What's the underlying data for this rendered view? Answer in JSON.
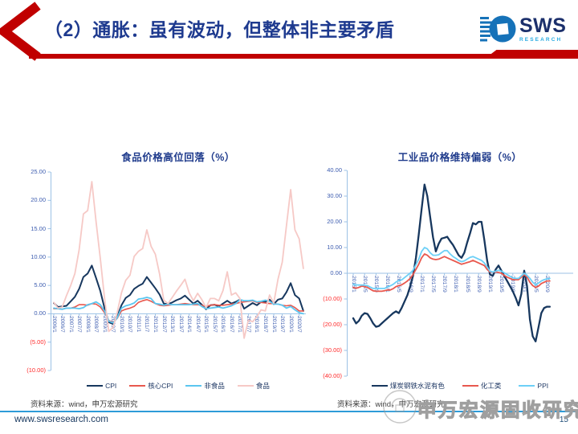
{
  "header": {
    "title": "（2）通胀：虽有波动，但整体非主要矛盾",
    "logo_text": "SWS",
    "logo_subtext": "RESEARCH"
  },
  "footer": {
    "source_left": "资料来源：wind，申万宏源研究",
    "source_right": "资料来源：wind，申万宏源研究",
    "watermark": "申万宏源固收研究",
    "website": "www.swsresearch.com",
    "page_number": "15"
  },
  "colors": {
    "accent_red": "#C00000",
    "title_navy": "#1E3A8F",
    "chart_title_navy": "#1F3B8C",
    "axis_line_blue": "#9CC2E5",
    "tick_label_blue": "#3E5EB0",
    "tick_label_negative_red": "#FF2B2B",
    "footer_line_blue": "#2E9BD8",
    "logo_blue": "#1672B8",
    "logo_cyan": "#29ABE2",
    "watermark_gray": "#9F9F9F"
  },
  "chart_data": [
    {
      "type": "line",
      "title": "食品价格高位回落（%）",
      "x_start": "2006/1",
      "x_end": "2020/10",
      "sample_interval_months": 3,
      "ylim": [
        -10,
        25
      ],
      "grid": false,
      "legend_position": "bottom",
      "y_ticks": [
        {
          "label": "25.00",
          "value": 25
        },
        {
          "label": "20.00",
          "value": 20
        },
        {
          "label": "15.00",
          "value": 15
        },
        {
          "label": "10.00",
          "value": 10
        },
        {
          "label": "5.00",
          "value": 5
        },
        {
          "label": "0.00",
          "value": 0
        },
        {
          "label": "(5.00)",
          "value": -5
        },
        {
          "label": "(10.00)",
          "value": -10
        }
      ],
      "x_tick_labels": [
        "2006/1",
        "2006/7",
        "2007/1",
        "2007/7",
        "2008/1",
        "2008/7",
        "2009/1",
        "2009/7",
        "2010/1",
        "2010/7",
        "2011/1",
        "2011/7",
        "2012/1",
        "2012/7",
        "2013/1",
        "2013/7",
        "2014/1",
        "2014/7",
        "2015/1",
        "2015/7",
        "2016/1",
        "2016/7",
        "2017/1",
        "2017/7",
        "2018/1",
        "2018/7",
        "2019/1",
        "2019/7",
        "2020/1",
        "2020/7"
      ],
      "series": [
        {
          "name": "CPI",
          "color": "#17375E",
          "line_width": 2.0,
          "values": [
            1.9,
            1.2,
            1.3,
            1.4,
            2.2,
            3.0,
            4.4,
            6.5,
            7.1,
            8.5,
            6.3,
            4.0,
            1.0,
            -1.5,
            -1.8,
            -0.5,
            1.5,
            2.8,
            3.3,
            4.4,
            4.9,
            5.3,
            6.5,
            5.5,
            4.5,
            3.4,
            1.8,
            1.7,
            2.0,
            2.4,
            2.7,
            3.2,
            2.5,
            1.8,
            2.3,
            1.6,
            0.8,
            1.5,
            1.6,
            1.3,
            1.8,
            2.3,
            1.8,
            2.1,
            2.5,
            0.9,
            1.4,
            1.9,
            1.5,
            2.1,
            2.1,
            2.5,
            1.7,
            2.5,
            2.7,
            3.8,
            5.4,
            3.3,
            2.7,
            0.5
          ]
        },
        {
          "name": "核心CPI",
          "color": "#E8584E",
          "line_width": 1.6,
          "values": [
            0.9,
            0.9,
            0.8,
            1.0,
            1.0,
            1.2,
            1.6,
            1.6,
            1.5,
            1.8,
            1.7,
            1.2,
            0.2,
            -1.2,
            -1.5,
            -0.8,
            0.5,
            0.8,
            1.0,
            1.3,
            2.0,
            2.3,
            2.5,
            2.2,
            1.8,
            1.5,
            1.4,
            1.5,
            1.6,
            1.6,
            1.7,
            1.8,
            1.7,
            1.6,
            1.6,
            1.5,
            1.3,
            1.5,
            1.6,
            1.5,
            1.5,
            1.6,
            1.7,
            1.8,
            2.0,
            2.1,
            2.2,
            2.3,
            2.0,
            2.0,
            1.9,
            1.8,
            1.8,
            1.7,
            1.5,
            1.4,
            1.5,
            1.1,
            0.5,
            0.5
          ]
        },
        {
          "name": "非食品",
          "color": "#5BC6F0",
          "line_width": 1.8,
          "values": [
            1.0,
            0.9,
            0.8,
            1.0,
            1.0,
            1.0,
            0.9,
            1.1,
            1.6,
            1.8,
            2.1,
            1.6,
            0.5,
            -1.3,
            -1.6,
            -0.7,
            1.0,
            1.4,
            1.6,
            1.9,
            2.6,
            2.7,
            2.9,
            2.7,
            1.8,
            1.7,
            1.5,
            1.7,
            1.6,
            1.6,
            1.6,
            1.6,
            1.6,
            1.7,
            1.8,
            1.3,
            0.9,
            1.0,
            1.1,
            1.2,
            1.0,
            1.2,
            1.4,
            1.8,
            2.5,
            2.3,
            2.3,
            2.4,
            2.1,
            2.2,
            2.4,
            2.2,
            1.7,
            1.7,
            1.5,
            1.0,
            1.3,
            0.7,
            0.2,
            0.0
          ]
        },
        {
          "name": "食品",
          "color": "#F6C9C6",
          "line_width": 1.8,
          "values": [
            2.0,
            1.0,
            1.2,
            3.2,
            5.0,
            7.1,
            11.3,
            17.6,
            18.2,
            23.3,
            16.2,
            9.7,
            2.8,
            -3.1,
            -2.4,
            0.2,
            3.7,
            5.9,
            6.8,
            10.1,
            11.0,
            11.5,
            14.8,
            11.9,
            10.5,
            7.0,
            2.4,
            1.8,
            2.9,
            4.0,
            5.0,
            6.1,
            3.7,
            2.3,
            3.6,
            2.5,
            1.1,
            2.7,
            2.7,
            2.3,
            4.1,
            7.4,
            3.3,
            3.7,
            2.7,
            -4.3,
            -1.1,
            -1.4,
            -0.5,
            0.7,
            0.5,
            3.3,
            1.9,
            6.1,
            9.1,
            15.5,
            21.9,
            14.8,
            13.2,
            8.0
          ]
        }
      ]
    },
    {
      "type": "line",
      "title": "工业品价格维持偏弱（%）",
      "x_start": "2015/1",
      "x_end": "2020/10",
      "sample_interval_months": 1,
      "ylim": [
        -40,
        40
      ],
      "grid": false,
      "legend_position": "bottom",
      "y_ticks": [
        {
          "label": "40.00",
          "value": 40
        },
        {
          "label": "30.00",
          "value": 30
        },
        {
          "label": "20.00",
          "value": 20
        },
        {
          "label": "10.00",
          "value": 10
        },
        {
          "label": "0.00",
          "value": 0
        },
        {
          "label": "(10.00)",
          "value": -10
        },
        {
          "label": "(20.00)",
          "value": -20
        },
        {
          "label": "(30.00)",
          "value": -30
        },
        {
          "label": "(40.00)",
          "value": -40
        }
      ],
      "x_tick_labels": [
        "2015/1",
        "2015/5",
        "2015/9",
        "2016/1",
        "2016/5",
        "2016/9",
        "2017/1",
        "2017/5",
        "2017/9",
        "2018/1",
        "2018/5",
        "2018/9",
        "2019/1",
        "2019/5",
        "2019/9",
        "2020/1",
        "2020/5",
        "2020/9"
      ],
      "series": [
        {
          "name": "煤炭钢铁水泥有色",
          "color": "#17375E",
          "line_width": 2.3,
          "values": [
            -17.5,
            -19.5,
            -18.5,
            -16.5,
            -15.5,
            -15.8,
            -17.5,
            -19.5,
            -20.8,
            -20.5,
            -19.5,
            -18.5,
            -17.5,
            -16.5,
            -15.5,
            -14.8,
            -15.5,
            -13.5,
            -11.0,
            -8.5,
            -5.0,
            -1.0,
            6.0,
            15.0,
            25.0,
            34.5,
            30.0,
            22.0,
            14.0,
            8.5,
            11.5,
            13.5,
            13.8,
            14.2,
            12.5,
            11.0,
            9.0,
            7.0,
            6.0,
            8.0,
            12.0,
            15.5,
            19.5,
            19.0,
            20.0,
            20.0,
            13.0,
            5.0,
            -0.5,
            -1.0,
            1.5,
            3.0,
            1.0,
            -1.0,
            -3.0,
            -5.0,
            -7.0,
            -9.5,
            -12.5,
            -8.0,
            1.0,
            -5.0,
            -18.0,
            -24.5,
            -26.5,
            -21.0,
            -15.5,
            -13.5,
            -13.0,
            -13.0
          ]
        },
        {
          "name": "化工类",
          "color": "#E8584E",
          "line_width": 1.8,
          "values": [
            -5.5,
            -5.8,
            -5.5,
            -5.0,
            -5.2,
            -5.5,
            -6.2,
            -6.8,
            -7.0,
            -7.0,
            -7.0,
            -6.8,
            -6.5,
            -6.5,
            -6.0,
            -5.2,
            -4.8,
            -4.5,
            -3.8,
            -3.0,
            -2.0,
            -0.5,
            1.5,
            3.5,
            6.0,
            7.5,
            7.0,
            6.0,
            5.5,
            5.3,
            5.5,
            6.0,
            6.5,
            6.0,
            5.5,
            5.0,
            4.5,
            4.0,
            3.5,
            3.8,
            4.2,
            4.5,
            5.0,
            4.5,
            4.0,
            3.5,
            3.0,
            1.5,
            0.5,
            0.5,
            0.5,
            0.3,
            0.0,
            -0.8,
            -1.5,
            -2.0,
            -2.5,
            -2.5,
            -2.5,
            -1.5,
            -0.5,
            -1.5,
            -3.5,
            -4.8,
            -5.5,
            -5.0,
            -4.0,
            -3.5,
            -3.0,
            -3.0
          ]
        },
        {
          "name": "PPI",
          "color": "#6DD0F7",
          "line_width": 1.8,
          "values": [
            -4.3,
            -4.5,
            -4.6,
            -4.6,
            -4.6,
            -4.8,
            -5.4,
            -5.9,
            -5.9,
            -5.9,
            -5.9,
            -5.9,
            -5.3,
            -4.9,
            -4.3,
            -3.4,
            -2.8,
            -2.6,
            -1.7,
            -0.8,
            0.1,
            1.2,
            3.3,
            5.5,
            8.5,
            10.0,
            9.5,
            8.0,
            7.0,
            7.0,
            7.2,
            8.0,
            8.8,
            8.8,
            7.5,
            6.5,
            5.8,
            5.0,
            4.5,
            4.8,
            5.5,
            6.2,
            6.5,
            6.0,
            5.5,
            5.0,
            4.0,
            2.5,
            0.8,
            0.5,
            0.8,
            1.2,
            0.8,
            0.2,
            -0.5,
            -1.2,
            -1.8,
            -2.0,
            -2.0,
            -1.0,
            0.0,
            -0.8,
            -2.0,
            -3.5,
            -4.5,
            -3.8,
            -3.0,
            -2.5,
            -2.2,
            -2.0
          ]
        }
      ]
    }
  ]
}
